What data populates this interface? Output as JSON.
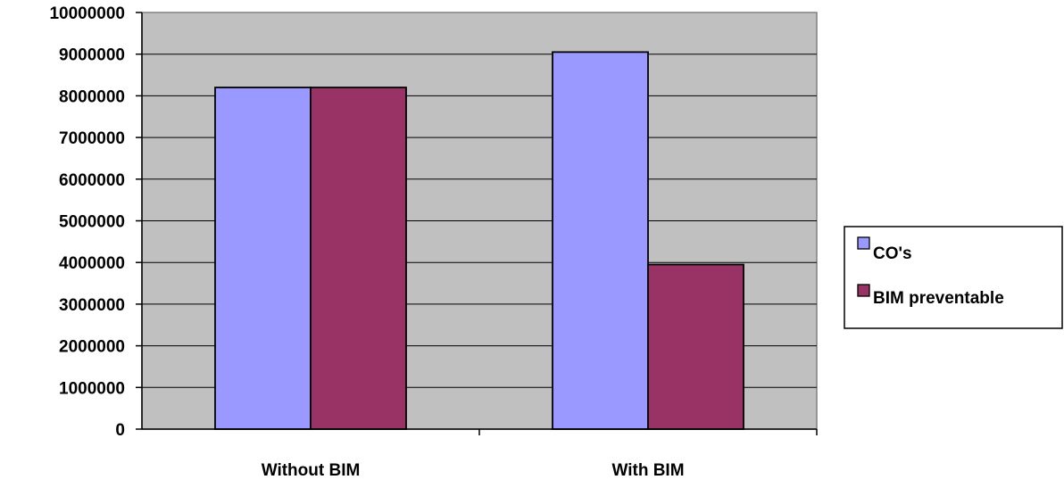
{
  "chart_data": {
    "type": "bar",
    "categories": [
      "Without BIM",
      "With BIM"
    ],
    "series": [
      {
        "name": "CO's",
        "values": [
          8200000,
          9050000
        ],
        "color": "#9999ff"
      },
      {
        "name": "BIM preventable",
        "values": [
          8200000,
          3950000
        ],
        "color": "#993366"
      }
    ],
    "ylim": [
      0,
      10000000
    ],
    "yticks": [
      "0",
      "1000000",
      "2000000",
      "3000000",
      "4000000",
      "5000000",
      "6000000",
      "7000000",
      "8000000",
      "9000000",
      "10000000"
    ],
    "grid": true,
    "legend": "right",
    "plot_background": "#c0c0c0"
  }
}
